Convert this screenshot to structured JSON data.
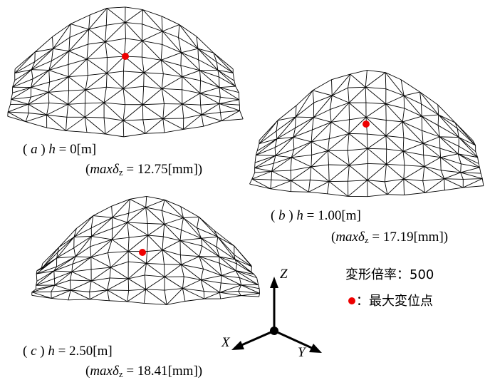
{
  "panels": [
    {
      "caption": {
        "open": "(",
        "id": "a",
        "close": ")",
        "var": "h",
        "rest": "= 0[m]"
      },
      "result": {
        "open": "(",
        "max": "max",
        "delta": "δ",
        "sub": "z",
        "rest": "= 12.75[mm])"
      }
    },
    {
      "caption": {
        "open": "(",
        "id": "b",
        "close": ")",
        "var": "h",
        "rest": "= 1.00[m]"
      },
      "result": {
        "open": "(",
        "max": "max",
        "delta": "δ",
        "sub": "z",
        "rest": "= 17.19[mm])"
      }
    },
    {
      "caption": {
        "open": "(",
        "id": "c",
        "close": ")",
        "var": "h",
        "rest": "= 2.50[m]"
      },
      "result": {
        "open": "(",
        "max": "max",
        "delta": "δ",
        "sub": "z",
        "rest": "= 18.41[mm])"
      }
    }
  ],
  "axes": {
    "z": "Z",
    "x": "X",
    "y": "Y"
  },
  "legend": {
    "scale": "変形倍率：500",
    "marker": "：最大変位点"
  }
}
